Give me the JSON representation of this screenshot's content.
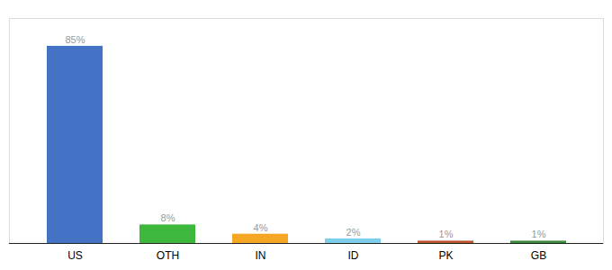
{
  "chart_data": {
    "type": "bar",
    "categories": [
      "US",
      "OTH",
      "IN",
      "ID",
      "PK",
      "GB"
    ],
    "values": [
      85,
      8,
      4,
      2,
      1,
      1
    ],
    "value_labels": [
      "85%",
      "8%",
      "4%",
      "2%",
      "1%",
      "1%"
    ],
    "colors": [
      "#4472c4",
      "#3db83d",
      "#f5a623",
      "#7ecfea",
      "#c0522a",
      "#3a8a3a"
    ],
    "ylim": [
      0,
      97
    ],
    "data_labels": true,
    "tick_labels": "x",
    "grid": false
  }
}
